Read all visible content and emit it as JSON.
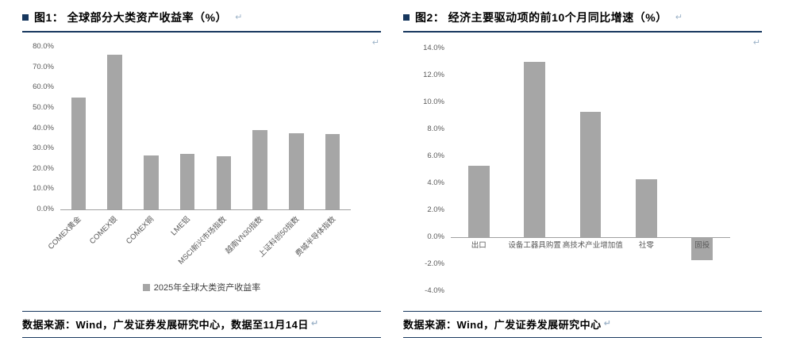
{
  "marks": {
    "paragraph_mark": "↵"
  },
  "colors": {
    "bar": "#A6A6A6",
    "accent_line": "#17375E",
    "axis_text": "#595959"
  },
  "figure1": {
    "title": "图1： 全球部分大类资产收益率（%）",
    "legend_label": "2025年全球大类资产收益率",
    "source": "数据来源：Wind，广发证券发展研究中心，数据至11月14日"
  },
  "figure2": {
    "title": "图2： 经济主要驱动项的前10个月同比增速（%）",
    "source": "数据来源：Wind，广发证券发展研究中心"
  },
  "chart_data": [
    {
      "type": "bar",
      "title": "2025年全球大类资产收益率（%）",
      "categories": [
        "COMEX黄金",
        "COMEX银",
        "COMEX铜",
        "LME铝",
        "MSCI新兴市场指数",
        "越南VN30指数",
        "上证科创50指数",
        "费城半导体指数"
      ],
      "values": [
        55.0,
        76.0,
        26.5,
        27.5,
        26.0,
        39.0,
        37.5,
        37.0
      ],
      "xlabel": "",
      "ylabel": "",
      "ylim": [
        0,
        80
      ],
      "ytick_step": 10,
      "grid": false,
      "legend": "2025年全球大类资产收益率",
      "legend_position": "bottom"
    },
    {
      "type": "bar",
      "title": "经济主要驱动项的前10个月同比增速（%）",
      "categories": [
        "出口",
        "设备工器具购置",
        "高技术产业增加值",
        "社零",
        "固投"
      ],
      "values": [
        5.3,
        13.0,
        9.3,
        4.3,
        -1.7
      ],
      "xlabel": "",
      "ylabel": "",
      "ylim": [
        -4,
        14
      ],
      "ytick_step": 2,
      "grid": false,
      "legend": null,
      "legend_position": "none"
    }
  ]
}
